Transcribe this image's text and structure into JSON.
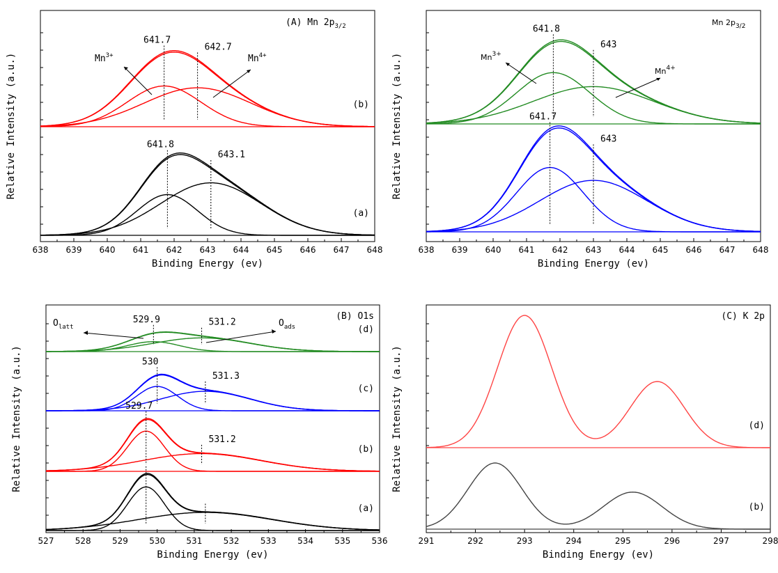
{
  "chart_data": [
    {
      "id": "A-left",
      "type": "line",
      "title": "(A) Mn 2p3/2",
      "xlabel": "Binding Energy (ev)",
      "ylabel": "Relative Intensity (a.u.)",
      "xlim": [
        638,
        648
      ],
      "xticks": [
        "638",
        "639",
        "640",
        "641",
        "642",
        "643",
        "644",
        "645",
        "646",
        "647",
        "648"
      ],
      "grid": false,
      "traces": [
        {
          "label": "(b)",
          "color": "#ff0000",
          "peaks": [
            {
              "center": 641.7,
              "height": 0.45,
              "width": 1.1
            },
            {
              "center": 642.7,
              "height": 0.43,
              "width": 1.6
            }
          ],
          "peak_labels": [
            "641.7",
            "642.7"
          ],
          "species": [
            "Mn3+",
            "Mn4+"
          ]
        },
        {
          "label": "(a)",
          "color": "#000000",
          "peaks": [
            {
              "center": 641.8,
              "height": 0.45,
              "width": 0.9
            },
            {
              "center": 643.1,
              "height": 0.58,
              "width": 1.5
            }
          ],
          "peak_labels": [
            "641.8",
            "643.1"
          ]
        }
      ]
    },
    {
      "id": "A-right",
      "type": "line",
      "title": "Mn 2p3/2",
      "xlabel": "Binding Energy (ev)",
      "ylabel": "Relative Intensity (a.u.)",
      "xlim": [
        638,
        648
      ],
      "xticks": [
        "638",
        "639",
        "640",
        "641",
        "642",
        "643",
        "644",
        "645",
        "646",
        "647",
        "648"
      ],
      "grid": false,
      "traces": [
        {
          "label": "",
          "color": "#228b22",
          "peaks": [
            {
              "center": 641.8,
              "height": 0.55,
              "width": 1.1
            },
            {
              "center": 643.0,
              "height": 0.4,
              "width": 1.8
            }
          ],
          "peak_labels": [
            "641.8",
            "643"
          ],
          "species": [
            "Mn3+",
            "Mn4+"
          ]
        },
        {
          "label": "",
          "color": "#0000ff",
          "peaks": [
            {
              "center": 641.7,
              "height": 0.6,
              "width": 1.0
            },
            {
              "center": 643.0,
              "height": 0.48,
              "width": 1.6
            }
          ],
          "peak_labels": [
            "641.7",
            "643"
          ]
        }
      ]
    },
    {
      "id": "B",
      "type": "line",
      "title": "(B) O1s",
      "xlabel": "Binding Energy (ev)",
      "ylabel": "Relative Intensity (a.u.)",
      "xlim": [
        527,
        536
      ],
      "xticks": [
        "527",
        "528",
        "529",
        "530",
        "531",
        "532",
        "533",
        "534",
        "535",
        "536"
      ],
      "grid": false,
      "species": [
        "Olatt",
        "Oads"
      ],
      "traces": [
        {
          "label": "(d)",
          "color": "#228b22",
          "peaks": [
            {
              "center": 529.9,
              "height": 0.21,
              "width": 0.7
            },
            {
              "center": 531.2,
              "height": 0.29,
              "width": 1.3
            }
          ],
          "peak_labels": [
            "529.9",
            "531.2"
          ]
        },
        {
          "label": "(c)",
          "color": "#0000ff",
          "peaks": [
            {
              "center": 530.0,
              "height": 0.5,
              "width": 0.55
            },
            {
              "center": 531.3,
              "height": 0.4,
              "width": 1.2
            }
          ],
          "peak_labels": [
            "530",
            "531.3"
          ]
        },
        {
          "label": "(b)",
          "color": "#ff0000",
          "peaks": [
            {
              "center": 529.7,
              "height": 0.68,
              "width": 0.5
            },
            {
              "center": 531.2,
              "height": 0.3,
              "width": 1.6
            }
          ],
          "peak_labels": [
            "529.7",
            "531.2"
          ]
        },
        {
          "label": "(a)",
          "color": "#000000",
          "peaks": [
            {
              "center": 529.7,
              "height": 0.72,
              "width": 0.5
            },
            {
              "center": 531.3,
              "height": 0.3,
              "width": 1.8
            }
          ],
          "peak_labels": [
            ""
          ]
        }
      ]
    },
    {
      "id": "C",
      "type": "line",
      "title": "(C) K 2p",
      "xlabel": "Binding Energy (ev)",
      "ylabel": "Relative Intensity (a.u.)",
      "xlim": [
        291,
        298
      ],
      "xticks": [
        "291",
        "292",
        "293",
        "294",
        "295",
        "296",
        "297",
        "298"
      ],
      "grid": false,
      "traces": [
        {
          "label": "(d)",
          "color": "#ff4444",
          "peaks": [
            {
              "center": 293.0,
              "height": 1.0,
              "width": 0.55
            },
            {
              "center": 295.7,
              "height": 0.5,
              "width": 0.55
            }
          ]
        },
        {
          "label": "(b)",
          "color": "#444444",
          "peaks": [
            {
              "center": 292.4,
              "height": 0.5,
              "width": 0.55
            },
            {
              "center": 295.2,
              "height": 0.28,
              "width": 0.6
            }
          ]
        }
      ]
    }
  ]
}
